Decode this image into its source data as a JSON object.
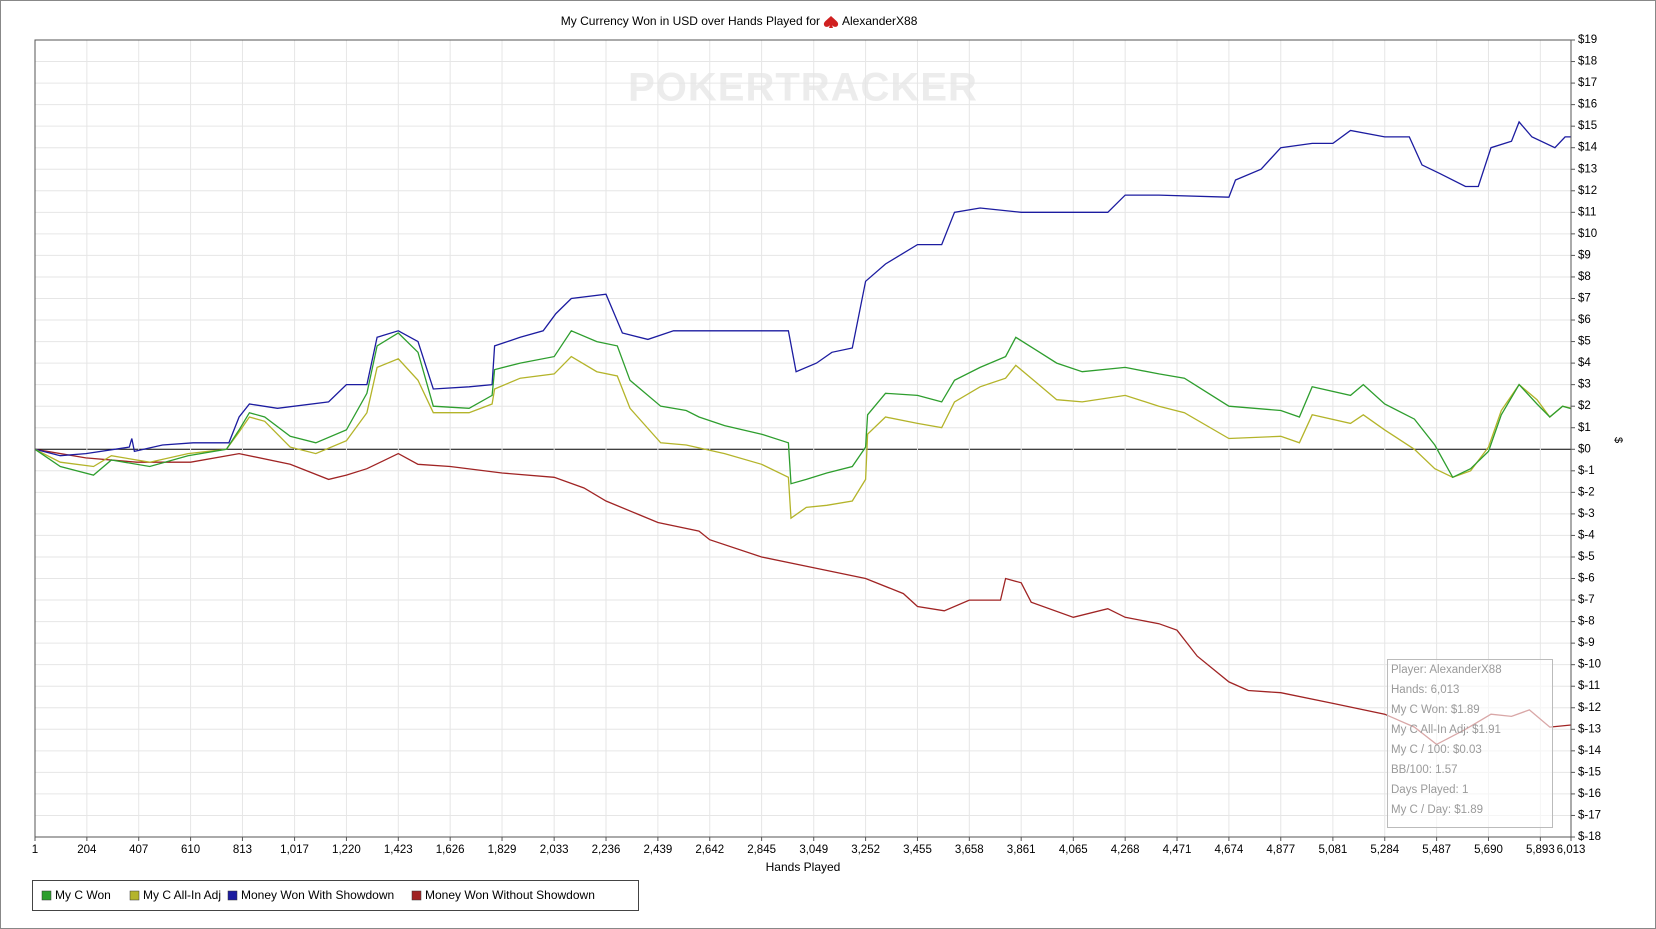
{
  "chart_data": {
    "type": "line",
    "title": "My Currency Won in USD over Hands Played for",
    "player": "AlexanderX88",
    "watermark": "POKERTRACKER",
    "x_label": "Hands Played",
    "y_label": "$",
    "xlim": [
      1,
      6013
    ],
    "ylim": [
      -18,
      19
    ],
    "grid": true,
    "xticks": [
      1,
      204,
      407,
      610,
      813,
      {
        "value": 1017,
        "label": "1,017"
      },
      {
        "value": 1220,
        "label": "1,220"
      },
      {
        "value": 1423,
        "label": "1,423"
      },
      {
        "value": 1626,
        "label": "1,626"
      },
      {
        "value": 1829,
        "label": "1,829"
      },
      {
        "value": 2033,
        "label": "2,033"
      },
      {
        "value": 2236,
        "label": "2,236"
      },
      {
        "value": 2439,
        "label": "2,439"
      },
      {
        "value": 2642,
        "label": "2,642"
      },
      {
        "value": 2845,
        "label": "2,845"
      },
      {
        "value": 3049,
        "label": "3,049"
      },
      {
        "value": 3252,
        "label": "3,252"
      },
      {
        "value": 3455,
        "label": "3,455"
      },
      {
        "value": 3658,
        "label": "3,658"
      },
      {
        "value": 3861,
        "label": "3,861"
      },
      {
        "value": 4065,
        "label": "4,065"
      },
      {
        "value": 4268,
        "label": "4,268"
      },
      {
        "value": 4471,
        "label": "4,471"
      },
      {
        "value": 4674,
        "label": "4,674"
      },
      {
        "value": 4877,
        "label": "4,877"
      },
      {
        "value": 5081,
        "label": "5,081"
      },
      {
        "value": 5284,
        "label": "5,284"
      },
      {
        "value": 5487,
        "label": "5,487"
      },
      {
        "value": 5690,
        "label": "5,690"
      },
      {
        "value": 5893,
        "label": "5,893"
      },
      {
        "value": 6013,
        "label": "6,013"
      }
    ],
    "yticks": [
      {
        "value": 19,
        "label": "$19"
      },
      {
        "value": 18,
        "label": "$18"
      },
      {
        "value": 17,
        "label": "$17"
      },
      {
        "value": 16,
        "label": "$16"
      },
      {
        "value": 15,
        "label": "$15"
      },
      {
        "value": 14,
        "label": "$14"
      },
      {
        "value": 13,
        "label": "$13"
      },
      {
        "value": 12,
        "label": "$12"
      },
      {
        "value": 11,
        "label": "$11"
      },
      {
        "value": 10,
        "label": "$10"
      },
      {
        "value": 9,
        "label": "$9"
      },
      {
        "value": 8,
        "label": "$8"
      },
      {
        "value": 7,
        "label": "$7"
      },
      {
        "value": 6,
        "label": "$6"
      },
      {
        "value": 5,
        "label": "$5"
      },
      {
        "value": 4,
        "label": "$4"
      },
      {
        "value": 3,
        "label": "$3"
      },
      {
        "value": 2,
        "label": "$2"
      },
      {
        "value": 1,
        "label": "$1"
      },
      {
        "value": 0,
        "label": "$0"
      },
      {
        "value": -1,
        "label": "$-1"
      },
      {
        "value": -2,
        "label": "$-2"
      },
      {
        "value": -3,
        "label": "$-3"
      },
      {
        "value": -4,
        "label": "$-4"
      },
      {
        "value": -5,
        "label": "$-5"
      },
      {
        "value": -6,
        "label": "$-6"
      },
      {
        "value": -7,
        "label": "$-7"
      },
      {
        "value": -8,
        "label": "$-8"
      },
      {
        "value": -9,
        "label": "$-9"
      },
      {
        "value": -10,
        "label": "$-10"
      },
      {
        "value": -11,
        "label": "$-11"
      },
      {
        "value": -12,
        "label": "$-12"
      },
      {
        "value": -13,
        "label": "$-13"
      },
      {
        "value": -14,
        "label": "$-14"
      },
      {
        "value": -15,
        "label": "$-15"
      },
      {
        "value": -16,
        "label": "$-16"
      },
      {
        "value": -17,
        "label": "$-17"
      },
      {
        "value": -18,
        "label": "$-18"
      }
    ],
    "series": [
      {
        "name": "My C Won",
        "color": "#2e9e2e",
        "x": [
          1,
          100,
          230,
          300,
          450,
          600,
          750,
          800,
          840,
          900,
          1000,
          1100,
          1220,
          1300,
          1340,
          1423,
          1500,
          1560,
          1700,
          1790,
          1800,
          1900,
          2033,
          2100,
          2200,
          2280,
          2330,
          2450,
          2550,
          2600,
          2700,
          2845,
          2950,
          2960,
          3020,
          3100,
          3200,
          3252,
          3260,
          3330,
          3455,
          3550,
          3600,
          3700,
          3800,
          3840,
          3920,
          4000,
          4100,
          4268,
          4400,
          4500,
          4674,
          4877,
          4950,
          5000,
          5150,
          5200,
          5284,
          5400,
          5480,
          5550,
          5620,
          5690,
          5740,
          5810,
          5880,
          5930,
          5980,
          6013
        ],
        "values": [
          0,
          -0.8,
          -1.2,
          -0.5,
          -0.8,
          -0.3,
          0,
          0.9,
          1.7,
          1.5,
          0.6,
          0.3,
          0.9,
          2.6,
          4.8,
          5.4,
          4.5,
          2,
          1.9,
          2.5,
          3.7,
          4,
          4.3,
          5.5,
          5,
          4.8,
          3.2,
          2,
          1.8,
          1.5,
          1.1,
          0.7,
          0.3,
          -1.6,
          -1.4,
          -1.1,
          -0.8,
          0.1,
          1.6,
          2.6,
          2.5,
          2.2,
          3.2,
          3.8,
          4.3,
          5.2,
          4.6,
          4,
          3.6,
          3.8,
          3.5,
          3.3,
          2,
          1.8,
          1.5,
          2.9,
          2.5,
          3,
          2.1,
          1.4,
          0.2,
          -1.3,
          -0.9,
          -0.1,
          1.6,
          3,
          2.1,
          1.5,
          2,
          1.89
        ]
      },
      {
        "name": "My C All-In Adj",
        "color": "#b4b42a",
        "x": [
          1,
          100,
          230,
          300,
          450,
          600,
          750,
          800,
          840,
          900,
          1000,
          1100,
          1220,
          1300,
          1340,
          1423,
          1500,
          1560,
          1700,
          1790,
          1800,
          1900,
          2033,
          2100,
          2200,
          2280,
          2330,
          2450,
          2550,
          2700,
          2845,
          2950,
          2960,
          3020,
          3100,
          3200,
          3252,
          3260,
          3330,
          3455,
          3550,
          3600,
          3700,
          3800,
          3840,
          3920,
          4000,
          4100,
          4268,
          4400,
          4500,
          4674,
          4877,
          4950,
          5000,
          5150,
          5200,
          5284,
          5400,
          5480,
          5550,
          5620,
          5690,
          5740,
          5810,
          5880,
          5930,
          5980,
          6013
        ],
        "values": [
          0,
          -0.6,
          -0.8,
          -0.3,
          -0.6,
          -0.2,
          0,
          0.8,
          1.5,
          1.3,
          0.1,
          -0.2,
          0.4,
          1.7,
          3.8,
          4.2,
          3.2,
          1.7,
          1.7,
          2.1,
          2.8,
          3.3,
          3.5,
          4.3,
          3.6,
          3.4,
          1.9,
          0.3,
          0.2,
          -0.2,
          -0.7,
          -1.3,
          -3.2,
          -2.7,
          -2.6,
          -2.4,
          -1.4,
          0.7,
          1.5,
          1.2,
          1,
          2.2,
          2.9,
          3.3,
          3.9,
          3.1,
          2.3,
          2.2,
          2.5,
          2,
          1.7,
          0.5,
          0.6,
          0.3,
          1.6,
          1.2,
          1.6,
          0.9,
          0,
          -0.9,
          -1.3,
          -1,
          0.1,
          1.8,
          3,
          2.3,
          1.5,
          2,
          1.91
        ]
      },
      {
        "name": "Money Won With Showdown",
        "color": "#1c1ca0",
        "x": [
          1,
          100,
          200,
          370,
          380,
          390,
          500,
          620,
          760,
          800,
          840,
          950,
          1150,
          1220,
          1300,
          1340,
          1423,
          1500,
          1560,
          1700,
          1790,
          1800,
          1900,
          1990,
          2040,
          2100,
          2236,
          2300,
          2400,
          2500,
          2700,
          2860,
          2950,
          2980,
          3060,
          3120,
          3200,
          3252,
          3330,
          3455,
          3550,
          3600,
          3700,
          3861,
          4065,
          4200,
          4268,
          4400,
          4674,
          4700,
          4800,
          4877,
          5000,
          5081,
          5150,
          5284,
          5380,
          5430,
          5500,
          5600,
          5650,
          5700,
          5780,
          5810,
          5860,
          5950,
          5990,
          6013
        ],
        "values": [
          0,
          -0.3,
          -0.2,
          0.1,
          0.5,
          -0.1,
          0.2,
          0.3,
          0.3,
          1.5,
          2.1,
          1.9,
          2.2,
          3,
          3,
          5.2,
          5.5,
          5,
          2.8,
          2.9,
          3,
          4.8,
          5.2,
          5.5,
          6.3,
          7,
          7.2,
          5.4,
          5.1,
          5.5,
          5.5,
          5.5,
          5.5,
          3.6,
          4,
          4.5,
          4.7,
          7.8,
          8.6,
          9.5,
          9.5,
          11,
          11.2,
          11,
          11,
          11,
          11.8,
          11.8,
          11.7,
          12.5,
          13,
          14,
          14.2,
          14.2,
          14.8,
          14.5,
          14.5,
          13.2,
          12.8,
          12.2,
          12.2,
          14,
          14.3,
          15.2,
          14.5,
          14,
          14.5,
          14.5
        ]
      },
      {
        "name": "Money Won Without Showdown",
        "color": "#a02424",
        "x": [
          1,
          200,
          400,
          610,
          800,
          1000,
          1150,
          1220,
          1300,
          1423,
          1500,
          1626,
          1829,
          2033,
          2150,
          2236,
          2439,
          2600,
          2642,
          2845,
          3049,
          3252,
          3400,
          3455,
          3560,
          3658,
          3780,
          3800,
          3861,
          3900,
          4065,
          4200,
          4268,
          4400,
          4471,
          4550,
          4674,
          4750,
          4877,
          5081,
          5284,
          5400,
          5487,
          5600,
          5700,
          5780,
          5850,
          5930,
          6013
        ],
        "values": [
          0,
          -0.4,
          -0.6,
          -0.6,
          -0.2,
          -0.7,
          -1.4,
          -1.2,
          -0.9,
          -0.2,
          -0.7,
          -0.8,
          -1.1,
          -1.3,
          -1.8,
          -2.4,
          -3.4,
          -3.8,
          -4.2,
          -5,
          -5.5,
          -6,
          -6.7,
          -7.3,
          -7.5,
          -7,
          -7,
          -6,
          -6.2,
          -7.1,
          -7.8,
          -7.4,
          -7.8,
          -8.1,
          -8.4,
          -9.6,
          -10.8,
          -11.2,
          -11.3,
          -11.8,
          -12.3,
          -12.9,
          -13.7,
          -13,
          -12.3,
          -12.4,
          -12.1,
          -12.9,
          -12.8
        ]
      }
    ],
    "info_box": [
      "Player: AlexanderX88",
      "Hands: 6,013",
      "My C Won: $1.89",
      "My C All-In Adj: $1.91",
      "My C / 100: $0.03",
      "BB/100: 1.57",
      "Days Played: 1",
      "My C / Day: $1.89"
    ]
  }
}
